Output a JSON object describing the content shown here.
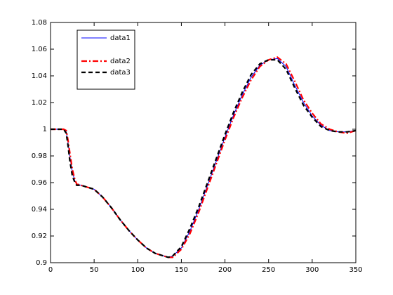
{
  "chart_data": {
    "type": "line",
    "x": [
      0,
      10,
      15,
      18,
      20,
      22,
      25,
      28,
      30,
      35,
      40,
      50,
      60,
      70,
      80,
      90,
      100,
      110,
      120,
      130,
      135,
      140,
      150,
      160,
      170,
      180,
      190,
      200,
      210,
      220,
      230,
      240,
      250,
      260,
      270,
      280,
      290,
      300,
      310,
      320,
      330,
      340,
      350
    ],
    "series": [
      {
        "name": "data1",
        "color": "#0000ff",
        "linestyle": "solid",
        "values": [
          1,
          1,
          1,
          0.998,
          0.99,
          0.98,
          0.968,
          0.961,
          0.959,
          0.958,
          0.957,
          0.955,
          0.949,
          0.941,
          0.932,
          0.924,
          0.917,
          0.911,
          0.907,
          0.905,
          0.904,
          0.905,
          0.911,
          0.924,
          0.94,
          0.958,
          0.976,
          0.994,
          1.011,
          1.026,
          1.039,
          1.048,
          1.052,
          1.053,
          1.047,
          1.033,
          1.02,
          1.01,
          1.003,
          0.999,
          0.998,
          0.998,
          0.999
        ]
      },
      {
        "name": "data2",
        "color": "#ff0000",
        "linestyle": "dashdot",
        "values": [
          1,
          1,
          1,
          0.999,
          0.992,
          0.983,
          0.97,
          0.962,
          0.959,
          0.958,
          0.957,
          0.955,
          0.949,
          0.941,
          0.932,
          0.924,
          0.917,
          0.911,
          0.907,
          0.905,
          0.904,
          0.904,
          0.91,
          0.922,
          0.938,
          0.956,
          0.974,
          0.992,
          1.009,
          1.024,
          1.037,
          1.047,
          1.052,
          1.054,
          1.049,
          1.036,
          1.022,
          1.012,
          1.004,
          1,
          0.998,
          0.997,
          0.999
        ]
      },
      {
        "name": "data3",
        "color": "#000000",
        "linestyle": "dashed",
        "values": [
          1,
          1,
          1,
          0.997,
          0.988,
          0.977,
          0.965,
          0.96,
          0.958,
          0.958,
          0.957,
          0.955,
          0.949,
          0.941,
          0.932,
          0.924,
          0.917,
          0.911,
          0.907,
          0.905,
          0.904,
          0.905,
          0.912,
          0.926,
          0.942,
          0.96,
          0.978,
          0.996,
          1.013,
          1.028,
          1.041,
          1.049,
          1.052,
          1.052,
          1.045,
          1.031,
          1.018,
          1.009,
          1.002,
          0.999,
          0.998,
          0.998,
          0.999
        ]
      }
    ],
    "xlim": [
      0,
      350
    ],
    "xticks": [
      0,
      50,
      100,
      150,
      200,
      250,
      300,
      350
    ],
    "ylim": [
      0.9,
      1.08
    ],
    "yticks": [
      0.9,
      0.92,
      0.94,
      0.96,
      0.98,
      1,
      1.02,
      1.04,
      1.06,
      1.08
    ],
    "legend": "upper left"
  }
}
